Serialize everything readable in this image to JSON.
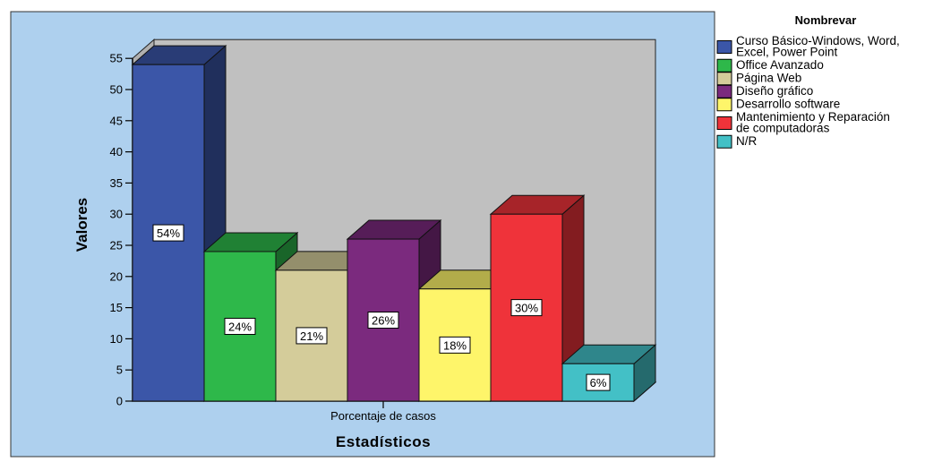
{
  "chart_data": {
    "type": "bar",
    "three_d": true,
    "title": "",
    "xlabel": "Estadísticos",
    "ylabel": "Valores",
    "category_label": "Porcentaje de casos",
    "ylim": [
      0,
      55
    ],
    "yticks": [
      0,
      5,
      10,
      15,
      20,
      25,
      30,
      35,
      40,
      45,
      50,
      55
    ],
    "grid": false,
    "legend_title": "Nombrevar",
    "legend_position": "right",
    "series": [
      {
        "name": "Curso Básico-Windows, Word, Excel, Power Point",
        "value": 54,
        "label": "54%",
        "color": "#3b56a8"
      },
      {
        "name": "Office Avanzado",
        "value": 24,
        "label": "24%",
        "color": "#2eb84a"
      },
      {
        "name": "Página Web",
        "value": 21,
        "label": "21%",
        "color": "#d4cc9a"
      },
      {
        "name": "Diseño gráfico",
        "value": 26,
        "label": "26%",
        "color": "#7b2a7e"
      },
      {
        "name": "Desarrollo software",
        "value": 18,
        "label": "18%",
        "color": "#fef56a"
      },
      {
        "name": "Mantenimiento y Reparación de computadoras",
        "value": 30,
        "label": "30%",
        "color": "#ef333a"
      },
      {
        "name": "N/R",
        "value": 6,
        "label": "6%",
        "color": "#43c0c6"
      }
    ],
    "background_color": "#aed0ee",
    "wall_color": "#c0c0c0"
  }
}
